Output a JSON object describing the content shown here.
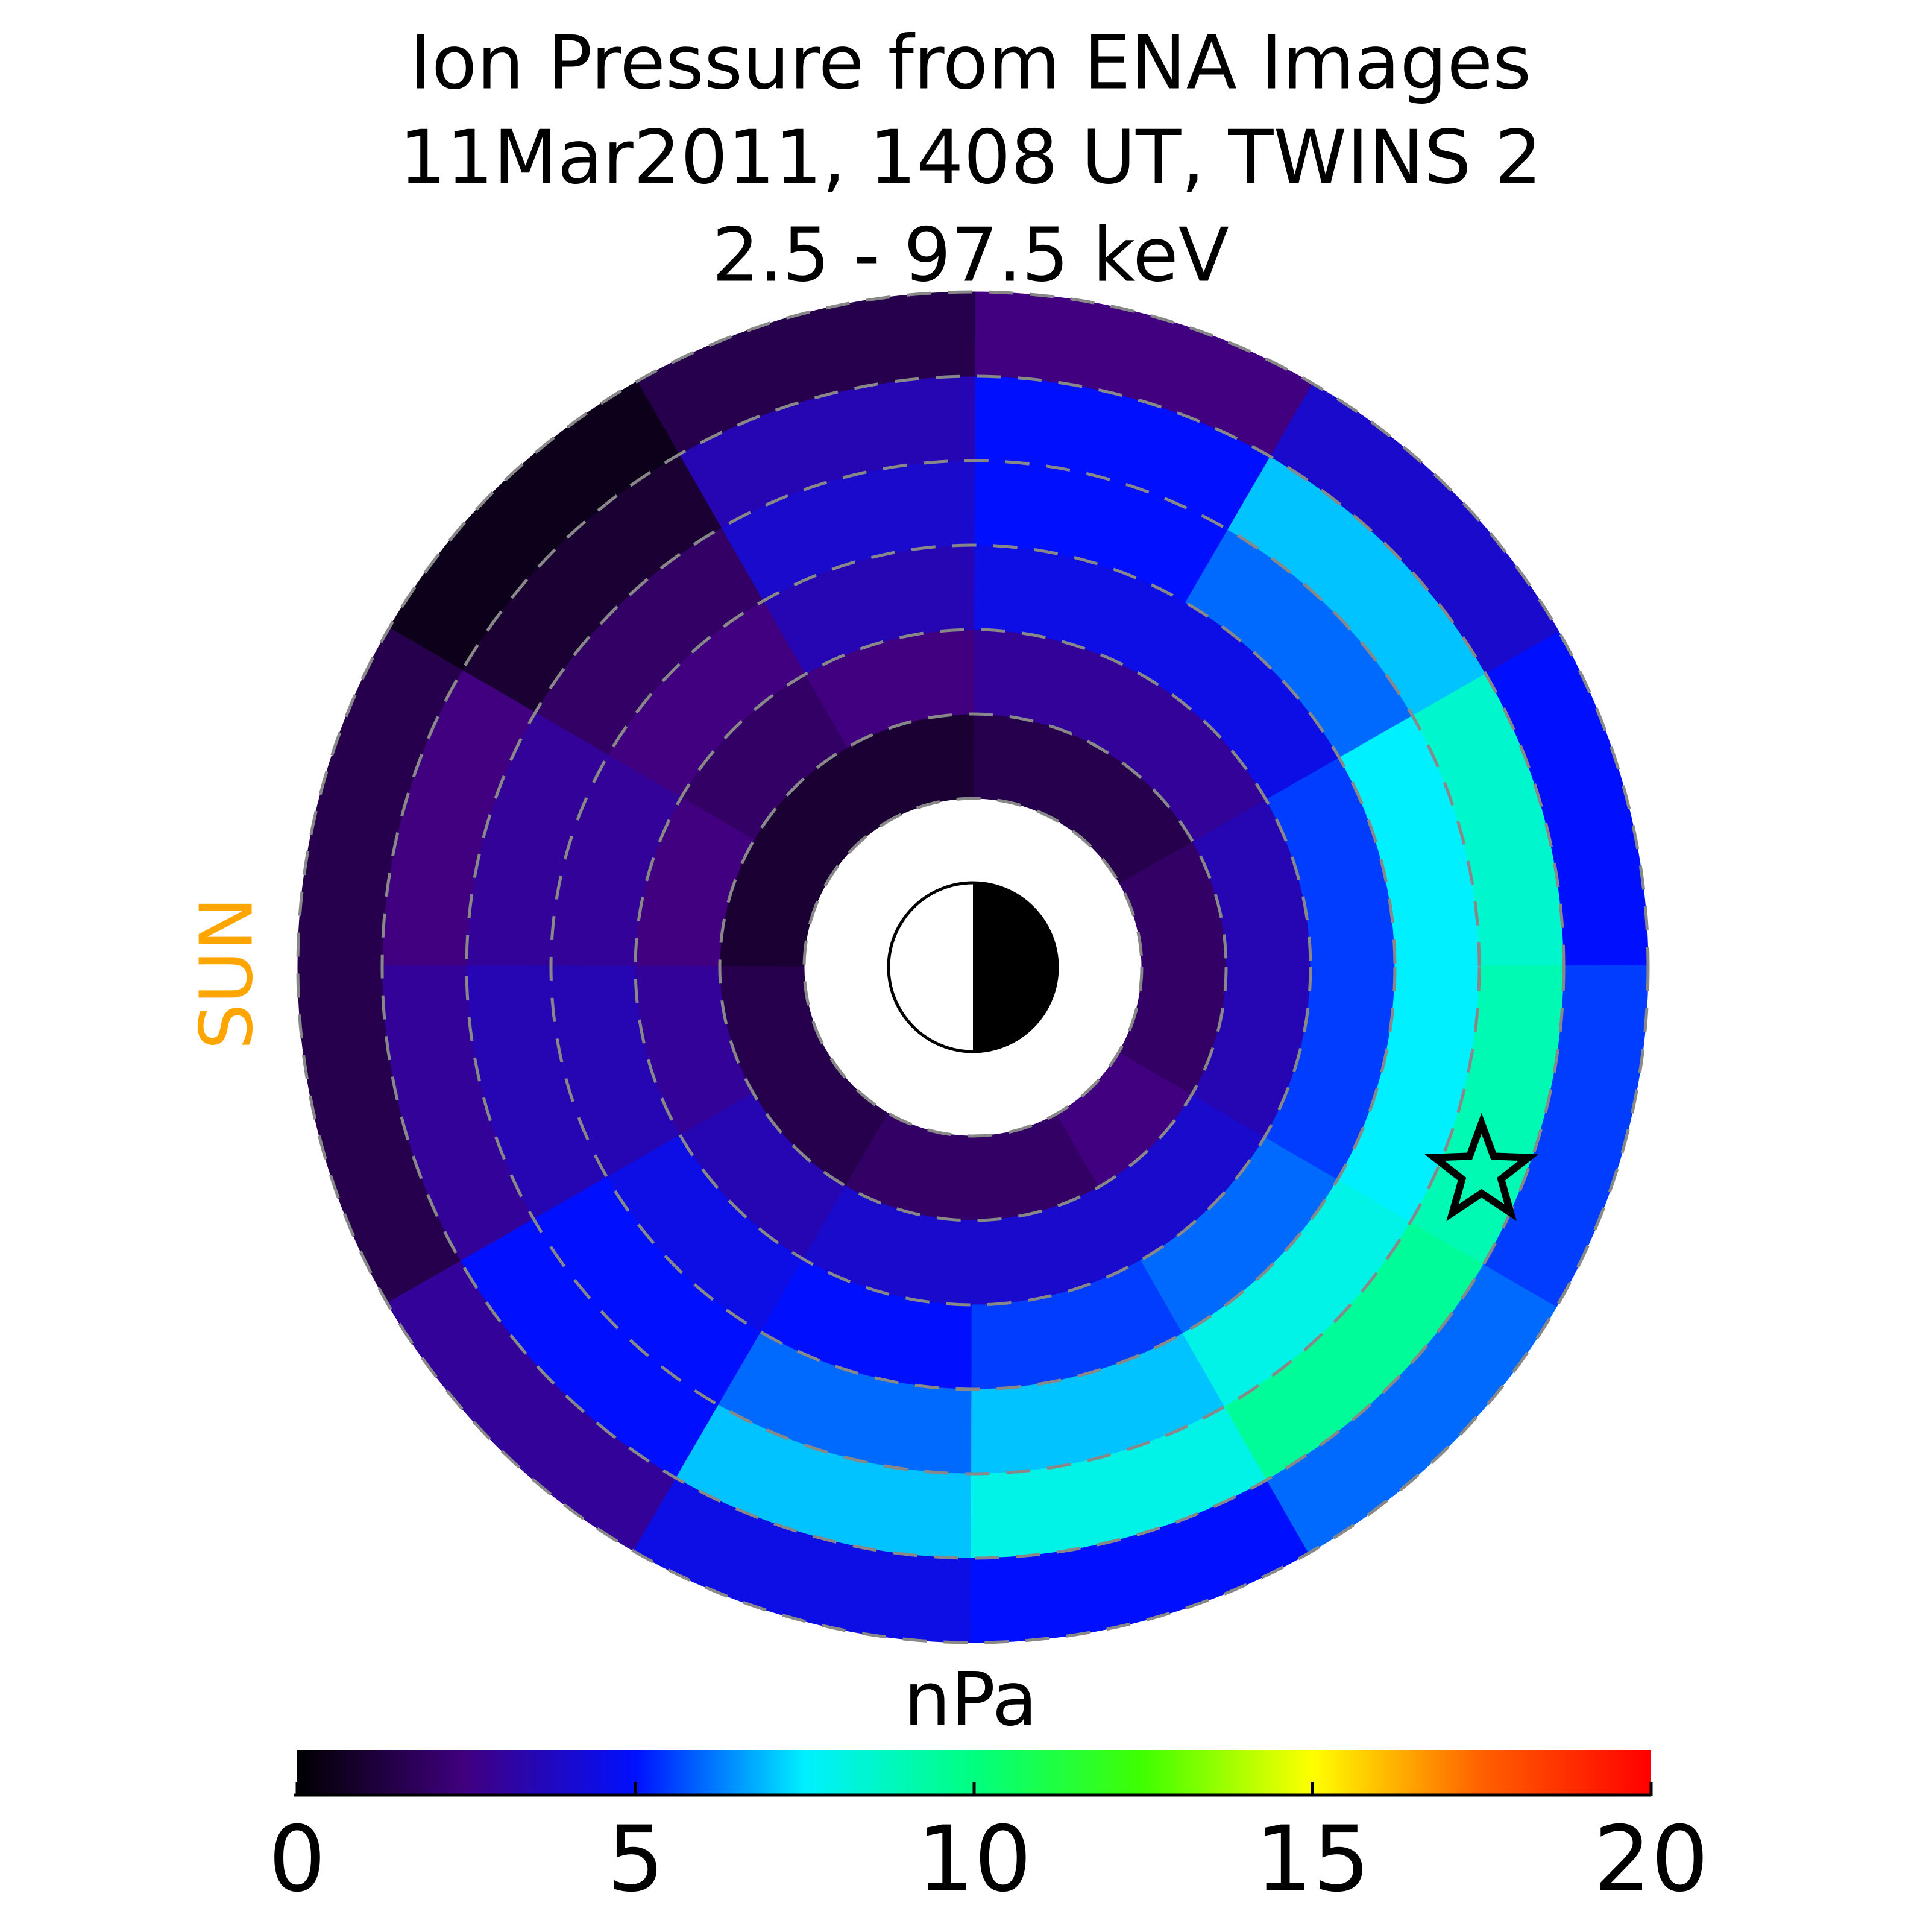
{
  "chart_data": {
    "type": "polar-heatmap",
    "title": [
      "Ion Pressure from  ENA Images",
      "11Mar2011, 1408 UT,  TWINS 2",
      "2.5 - 97.5 keV"
    ],
    "sun_label": "SUN",
    "colorbar_label": "nPa",
    "rlim": [
      2,
      8
    ],
    "rticks": [
      2,
      3,
      4,
      5,
      6,
      7,
      8
    ],
    "values": [
      [
        2,
        1.5,
        1.5,
        1,
        1,
        1,
        1.5,
        1.5,
        2,
        2,
        2.5,
        2
      ],
      [
        3.5,
        3,
        3,
        2.5,
        2,
        2.5,
        3,
        3.5,
        4,
        4,
        4,
        3.5
      ],
      [
        5.5,
        4.5,
        4.5,
        3.5,
        2.5,
        3,
        3.5,
        4.5,
        5,
        5.5,
        6,
        5.5
      ],
      [
        7.5,
        6,
        5,
        4,
        2,
        3,
        3.5,
        5,
        6,
        7,
        8,
        7.5
      ],
      [
        8.5,
        7,
        5,
        3.5,
        1,
        2.5,
        3,
        5,
        7,
        8,
        9.5,
        9
      ],
      [
        5,
        4,
        2.5,
        1.5,
        0.5,
        1.5,
        1.5,
        3,
        4.5,
        5,
        6,
        5.5
      ]
    ],
    "marker": {
      "r": 6.5,
      "theta": -22
    },
    "clim": [
      0,
      20
    ],
    "cticks": [
      0,
      5,
      10,
      15,
      20
    ],
    "colormap": [
      "#000000",
      "#400080",
      "#0010ff",
      "#00f0ff",
      "#00ff80",
      "#40ff00",
      "#ffff00",
      "#ff6000",
      "#ff0000"
    ]
  }
}
